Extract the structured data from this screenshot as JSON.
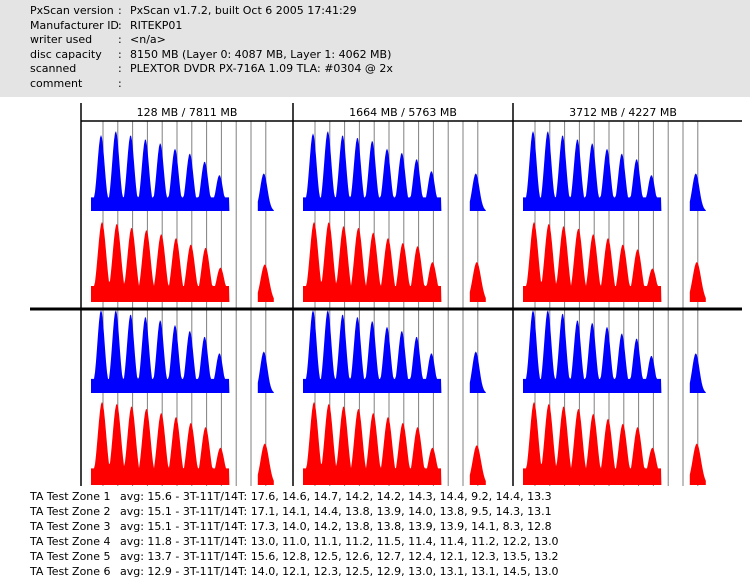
{
  "header": [
    {
      "label": "PxScan version",
      "value": "PxScan v1.7.2, built Oct  6 2005 17:41:29"
    },
    {
      "label": "Manufacturer ID",
      "value": "RITEKP01"
    },
    {
      "label": "writer used",
      "value": "<n/a>"
    },
    {
      "label": "disc capacity",
      "value": "8150 MB (Layer 0: 4087 MB,  Layer 1: 4062 MB)"
    },
    {
      "label": "scanned",
      "value": "PLEXTOR DVDR PX-716A 1.09 TLA: #0304 @ 2x"
    },
    {
      "label": "comment",
      "value": ""
    }
  ],
  "chart_data": {
    "type": "area",
    "grid_marks": [
      "3T",
      "4T",
      "5T",
      "6T",
      "7T",
      "8T",
      "9T",
      "10T",
      "11T",
      "12T",
      "13T",
      "14T"
    ],
    "column_titles": [
      "128 MB / 7811 MB",
      "1664 MB / 5763 MB",
      "3712 MB / 4227 MB"
    ],
    "colors": {
      "land": "#0000ff",
      "groove": "#ff0000"
    },
    "peak_marks": [
      "3T",
      "4T",
      "5T",
      "6T",
      "7T",
      "8T",
      "9T",
      "10T",
      "11T",
      "14T"
    ],
    "panels": [
      {
        "blue": [
          0.95,
          1,
          0.95,
          0.9,
          0.85,
          0.78,
          0.72,
          0.62,
          0.45,
          0.47
        ],
        "red": [
          1,
          0.98,
          0.93,
          0.9,
          0.85,
          0.8,
          0.72,
          0.68,
          0.43,
          0.47
        ]
      },
      {
        "blue": [
          0.97,
          1,
          0.95,
          0.92,
          0.88,
          0.78,
          0.73,
          0.65,
          0.5,
          0.47
        ],
        "red": [
          1,
          1,
          0.95,
          0.93,
          0.87,
          0.8,
          0.74,
          0.7,
          0.5,
          0.5
        ]
      },
      {
        "blue": [
          1,
          1,
          0.95,
          0.9,
          0.85,
          0.78,
          0.72,
          0.65,
          0.45,
          0.47
        ],
        "red": [
          1,
          0.98,
          0.95,
          0.92,
          0.85,
          0.8,
          0.72,
          0.66,
          0.42,
          0.5
        ]
      },
      {
        "blue": [
          1,
          1,
          0.95,
          0.92,
          0.88,
          0.82,
          0.75,
          0.68,
          0.48,
          0.5
        ],
        "red": [
          1,
          0.98,
          0.95,
          0.92,
          0.87,
          0.82,
          0.75,
          0.7,
          0.45,
          0.5
        ]
      },
      {
        "blue": [
          1,
          1,
          0.95,
          0.92,
          0.87,
          0.8,
          0.75,
          0.68,
          0.48,
          0.5
        ],
        "red": [
          1,
          0.98,
          0.95,
          0.92,
          0.87,
          0.82,
          0.75,
          0.7,
          0.45,
          0.48
        ]
      },
      {
        "blue": [
          1,
          1,
          0.96,
          0.88,
          0.85,
          0.8,
          0.72,
          0.66,
          0.45,
          0.48
        ],
        "red": [
          1,
          0.98,
          0.95,
          0.92,
          0.86,
          0.8,
          0.74,
          0.7,
          0.45,
          0.5
        ]
      }
    ],
    "zones": [
      {
        "name": "TA Test Zone 1",
        "avg": "15.6",
        "values": [
          17.6,
          14.6,
          14.7,
          14.2,
          14.2,
          14.3,
          14.4,
          9.2,
          14.4,
          13.3
        ],
        "text": "avg: 15.6 - 3T-11T/14T: 17.6, 14.6, 14.7, 14.2, 14.2, 14.3, 14.4, 9.2, 14.4, 13.3"
      },
      {
        "name": "TA Test Zone 2",
        "avg": "15.1",
        "values": [
          17.1,
          14.1,
          14.4,
          13.8,
          13.9,
          14.0,
          13.8,
          9.5,
          14.3,
          13.1
        ],
        "text": "avg: 15.1 - 3T-11T/14T: 17.1, 14.1, 14.4, 13.8, 13.9, 14.0, 13.8, 9.5, 14.3, 13.1"
      },
      {
        "name": "TA Test Zone 3",
        "avg": "15.1",
        "values": [
          17.3,
          14.0,
          14.2,
          13.8,
          13.8,
          13.9,
          13.9,
          14.1,
          8.3,
          12.8
        ],
        "text": "avg: 15.1 - 3T-11T/14T: 17.3, 14.0, 14.2, 13.8, 13.8, 13.9, 13.9, 14.1, 8.3, 12.8"
      },
      {
        "name": "TA Test Zone 4",
        "avg": "11.8",
        "values": [
          13.0,
          11.0,
          11.1,
          11.2,
          11.5,
          11.4,
          11.4,
          11.2,
          12.2,
          13.0
        ],
        "text": "avg: 11.8 - 3T-11T/14T: 13.0, 11.0, 11.1, 11.2, 11.5, 11.4, 11.4, 11.2, 12.2, 13.0"
      },
      {
        "name": "TA Test Zone 5",
        "avg": "13.7",
        "values": [
          15.6,
          12.8,
          12.5,
          12.6,
          12.7,
          12.4,
          12.1,
          12.3,
          13.5,
          13.2
        ],
        "text": "avg: 13.7 - 3T-11T/14T: 15.6, 12.8, 12.5, 12.6, 12.7, 12.4, 12.1, 12.3, 13.5, 13.2"
      },
      {
        "name": "TA Test Zone 6",
        "avg": "12.9",
        "values": [
          14.0,
          12.1,
          12.3,
          12.5,
          12.9,
          13.0,
          13.1,
          13.1,
          14.5,
          13.0
        ],
        "text": "avg: 12.9 - 3T-11T/14T: 14.0, 12.1, 12.3, 12.5, 12.9, 13.0, 13.1, 13.1, 14.5, 13.0"
      }
    ]
  }
}
